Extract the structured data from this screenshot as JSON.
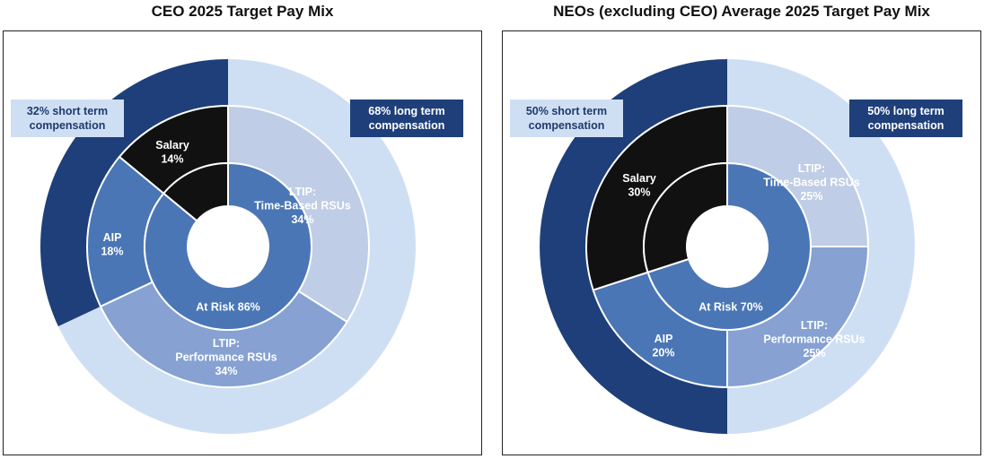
{
  "colors": {
    "outer_short": "#1e3f79",
    "outer_long": "#cfdff3",
    "salary": "#111111",
    "aip": "#4a76b6",
    "ltip_time": "#bfcde6",
    "ltip_perf": "#86a1d2",
    "at_risk": "#4a76b6",
    "fixed": "#111111"
  },
  "chart_data": [
    {
      "type": "pie",
      "title": "CEO 2025 Target Pay Mix",
      "outer_ring": [
        {
          "label": "32% short term compensation",
          "value": 32,
          "color_key": "outer_short"
        },
        {
          "label": "68% long term compensation",
          "value": 68,
          "color_key": "outer_long"
        }
      ],
      "middle_ring": [
        {
          "label": "LTIP: Time-Based RSUs",
          "value": 34,
          "text": "34%",
          "color_key": "ltip_time"
        },
        {
          "label": "LTIP: Performance RSUs",
          "value": 34,
          "text": "34%",
          "color_key": "ltip_perf"
        },
        {
          "label": "AIP",
          "value": 18,
          "text": "18%",
          "color_key": "aip"
        },
        {
          "label": "Salary",
          "value": 14,
          "text": "14%",
          "color_key": "salary"
        }
      ],
      "inner_ring": [
        {
          "label": "At Risk 86%",
          "value": 86,
          "color_key": "at_risk"
        },
        {
          "label": "",
          "value": 14,
          "color_key": "fixed"
        }
      ]
    },
    {
      "type": "pie",
      "title": "NEOs (excluding CEO) Average 2025 Target Pay Mix",
      "outer_ring": [
        {
          "label": "50% short term compensation",
          "value": 50,
          "color_key": "outer_short"
        },
        {
          "label": "50% long term compensation",
          "value": 50,
          "color_key": "outer_long"
        }
      ],
      "middle_ring": [
        {
          "label": "LTIP: Time-Based RSUs",
          "value": 25,
          "text": "25%",
          "color_key": "ltip_time"
        },
        {
          "label": "LTIP: Performance RSUs",
          "value": 25,
          "text": "25%",
          "color_key": "ltip_perf"
        },
        {
          "label": "AIP",
          "value": 20,
          "text": "20%",
          "color_key": "aip"
        },
        {
          "label": "Salary",
          "value": 30,
          "text": "30%",
          "color_key": "salary"
        }
      ],
      "inner_ring": [
        {
          "label": "At Risk 70%",
          "value": 70,
          "color_key": "at_risk"
        },
        {
          "label": "",
          "value": 30,
          "color_key": "fixed"
        }
      ]
    }
  ]
}
